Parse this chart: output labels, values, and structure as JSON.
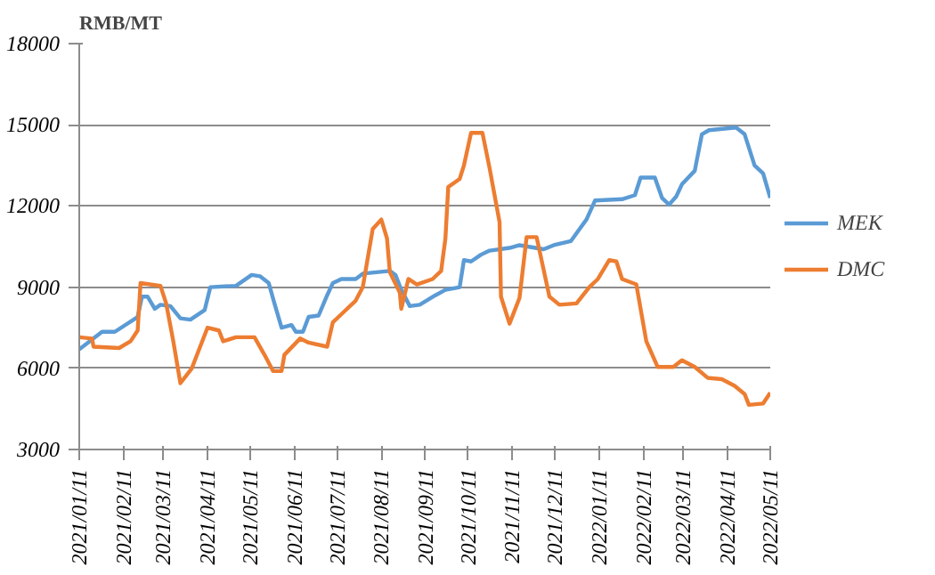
{
  "chart_data": {
    "type": "line",
    "ylabel": "RMB/MT",
    "legend": "right",
    "grid": "y",
    "marker": "none",
    "line_style": "solid",
    "ylim": [
      3000,
      18000
    ],
    "yticks": [
      3000,
      6000,
      9000,
      12000,
      15000,
      18000
    ],
    "xlim": [
      "2021-01-11",
      "2022-05-11"
    ],
    "xticks": [
      {
        "value": "2021-01-11",
        "label": "2021/01/11"
      },
      {
        "value": "2021-02-11",
        "label": "2021/02/11"
      },
      {
        "value": "2021-03-11",
        "label": "2021/03/11"
      },
      {
        "value": "2021-04-11",
        "label": "2021/04/11"
      },
      {
        "value": "2021-05-11",
        "label": "2021/05/11"
      },
      {
        "value": "2021-06-11",
        "label": "2021/06/11"
      },
      {
        "value": "2021-07-11",
        "label": "2021/07/11"
      },
      {
        "value": "2021-08-11",
        "label": "2021/08/11"
      },
      {
        "value": "2021-09-11",
        "label": "2021/09/11"
      },
      {
        "value": "2021-10-11",
        "label": "2021/10/11"
      },
      {
        "value": "2021-11-11",
        "label": "2021/11/11"
      },
      {
        "value": "2021-12-11",
        "label": "2021/12/11"
      },
      {
        "value": "2022-01-11",
        "label": "2022/01/11"
      },
      {
        "value": "2022-02-11",
        "label": "2022/02/11"
      },
      {
        "value": "2022-03-11",
        "label": "2022/03/11"
      },
      {
        "value": "2022-04-11",
        "label": "2022/04/11"
      },
      {
        "value": "2022-05-11",
        "label": "2022/05/11"
      }
    ],
    "series": [
      {
        "name": "MEK",
        "color": "#5b9bd5",
        "x": [
          "2021-01-11",
          "2021-01-27",
          "2021-02-05",
          "2021-02-21",
          "2021-02-24",
          "2021-02-28",
          "2021-03-05",
          "2021-03-09",
          "2021-03-16",
          "2021-03-23",
          "2021-03-30",
          "2021-04-09",
          "2021-04-13",
          "2021-05-01",
          "2021-05-12",
          "2021-05-18",
          "2021-05-24",
          "2021-05-28",
          "2021-06-02",
          "2021-06-09",
          "2021-06-12",
          "2021-06-17",
          "2021-06-21",
          "2021-06-28",
          "2021-07-04",
          "2021-07-08",
          "2021-07-14",
          "2021-07-24",
          "2021-07-29",
          "2021-08-17",
          "2021-08-21",
          "2021-08-25",
          "2021-08-31",
          "2021-09-07",
          "2021-09-18",
          "2021-09-25",
          "2021-10-05",
          "2021-10-08",
          "2021-10-13",
          "2021-10-20",
          "2021-10-26",
          "2021-11-09",
          "2021-11-16",
          "2021-12-03",
          "2021-12-10",
          "2021-12-22",
          "2022-01-02",
          "2022-01-08",
          "2022-01-27",
          "2022-02-05",
          "2022-02-09",
          "2022-02-19",
          "2022-02-24",
          "2022-03-01",
          "2022-03-06",
          "2022-03-10",
          "2022-03-19",
          "2022-03-24",
          "2022-03-29",
          "2022-04-17",
          "2022-04-23",
          "2022-04-30",
          "2022-05-06",
          "2022-05-11"
        ],
        "values": [
          6700,
          7350,
          7350,
          7900,
          8650,
          8650,
          8200,
          8350,
          8300,
          7850,
          7800,
          8150,
          9000,
          9050,
          9450,
          9400,
          9150,
          8400,
          7500,
          7600,
          7350,
          7350,
          7900,
          7950,
          8700,
          9150,
          9300,
          9300,
          9500,
          9600,
          9450,
          8900,
          8300,
          8350,
          8700,
          8900,
          9000,
          10000,
          9950,
          10200,
          10350,
          10450,
          10550,
          10400,
          10550,
          10700,
          11500,
          12200,
          12250,
          12400,
          13050,
          13050,
          12300,
          12050,
          12350,
          12800,
          13300,
          14650,
          14800,
          14900,
          14650,
          13500,
          13200,
          12300
        ]
      },
      {
        "name": "DMC",
        "color": "#ed7d31",
        "x": [
          "2021-01-11",
          "2021-01-20",
          "2021-01-21",
          "2021-02-08",
          "2021-02-16",
          "2021-02-21",
          "2021-02-23",
          "2021-03-09",
          "2021-03-13",
          "2021-03-18",
          "2021-03-23",
          "2021-03-31",
          "2021-04-11",
          "2021-04-19",
          "2021-04-22",
          "2021-05-01",
          "2021-05-14",
          "2021-05-21",
          "2021-05-27",
          "2021-06-02",
          "2021-06-04",
          "2021-06-15",
          "2021-06-21",
          "2021-07-04",
          "2021-07-08",
          "2021-07-14",
          "2021-07-24",
          "2021-07-29",
          "2021-08-05",
          "2021-08-11",
          "2021-08-15",
          "2021-08-17",
          "2021-08-24",
          "2021-08-25",
          "2021-08-30",
          "2021-09-05",
          "2021-09-16",
          "2021-09-22",
          "2021-09-25",
          "2021-09-27",
          "2021-10-05",
          "2021-10-08",
          "2021-10-13",
          "2021-10-21",
          "2021-10-26",
          "2021-11-02",
          "2021-11-03",
          "2021-11-09",
          "2021-11-16",
          "2021-11-21",
          "2021-11-28",
          "2021-12-07",
          "2021-12-14",
          "2021-12-26",
          "2022-01-04",
          "2022-01-10",
          "2022-01-18",
          "2022-01-23",
          "2022-01-27",
          "2022-02-06",
          "2022-02-13",
          "2022-02-21",
          "2022-03-04",
          "2022-03-10",
          "2022-03-19",
          "2022-03-28",
          "2022-04-07",
          "2022-04-16",
          "2022-04-23",
          "2022-04-26",
          "2022-05-06",
          "2022-05-11"
        ],
        "values": [
          7150,
          7100,
          6800,
          6750,
          7000,
          7400,
          9150,
          9050,
          8400,
          7000,
          5450,
          6000,
          7500,
          7400,
          7000,
          7150,
          7150,
          6500,
          5900,
          5900,
          6500,
          7100,
          6950,
          6800,
          7700,
          8000,
          8500,
          9000,
          11150,
          11500,
          10800,
          9550,
          8800,
          8200,
          9300,
          9100,
          9300,
          9600,
          10800,
          12700,
          13000,
          13500,
          14700,
          14700,
          13400,
          11400,
          8650,
          7650,
          8600,
          10850,
          10850,
          8650,
          8350,
          8400,
          9000,
          9300,
          10000,
          9950,
          9300,
          9100,
          7000,
          6050,
          6050,
          6300,
          6050,
          5650,
          5600,
          5350,
          5050,
          4650,
          4700,
          5100
        ]
      }
    ]
  }
}
